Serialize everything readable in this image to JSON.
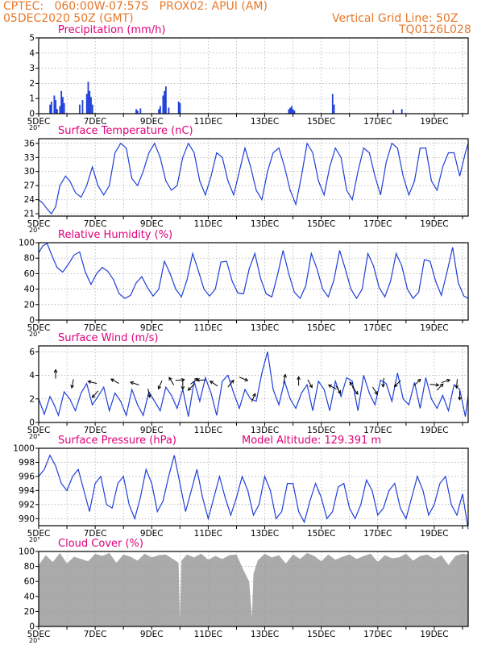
{
  "header": {
    "line1": "CPTEC:   060:00W-07:57S   PROX02: APUI (AM)",
    "line2": "05DEC2020 50Z (GMT)",
    "grid_note": "Vertical Grid Line: 50Z",
    "run_code": "TQ0126L028"
  },
  "colors": {
    "header": "#e8782a",
    "panel_title": "#e0007a",
    "series": "#1f3fd8",
    "wind_arrow": "#000000",
    "cloud_fill": "#aaaaaa",
    "grid": "#999999"
  },
  "x_axis": {
    "tick_labels": [
      "5DEC",
      "7DEC",
      "9DEC",
      "11DEC",
      "13DEC",
      "15DEC",
      "17DEC",
      "19DEC"
    ],
    "cut_label": "20°",
    "days_span": [
      0,
      15.2
    ]
  },
  "chart_data": [
    {
      "id": "precip",
      "type": "bar",
      "title": "Precipitation (mm/h)",
      "ylim": [
        0,
        5
      ],
      "yticks": [
        "0",
        "1",
        "2",
        "3",
        "4",
        "5"
      ],
      "grid": true,
      "bars": [
        [
          0.4,
          0.6
        ],
        [
          0.45,
          0.8
        ],
        [
          0.55,
          1.2
        ],
        [
          0.6,
          0.9
        ],
        [
          0.65,
          0.3
        ],
        [
          0.75,
          0.5
        ],
        [
          0.8,
          1.5
        ],
        [
          0.85,
          1.1
        ],
        [
          0.9,
          0.7
        ],
        [
          1.45,
          0.6
        ],
        [
          1.55,
          0.9
        ],
        [
          1.7,
          1.3
        ],
        [
          1.75,
          2.1
        ],
        [
          1.8,
          1.5
        ],
        [
          1.85,
          1.1
        ],
        [
          1.9,
          0.6
        ],
        [
          3.45,
          0.3
        ],
        [
          3.5,
          0.2
        ],
        [
          3.6,
          0.35
        ],
        [
          4.25,
          0.3
        ],
        [
          4.3,
          0.5
        ],
        [
          4.4,
          1.2
        ],
        [
          4.45,
          1.5
        ],
        [
          4.5,
          1.8
        ],
        [
          4.6,
          0.4
        ],
        [
          4.95,
          0.8
        ],
        [
          5.0,
          0.7
        ],
        [
          8.85,
          0.3
        ],
        [
          8.9,
          0.4
        ],
        [
          8.95,
          0.5
        ],
        [
          9.0,
          0.3
        ],
        [
          9.05,
          0.2
        ],
        [
          10.4,
          1.3
        ],
        [
          10.45,
          0.6
        ],
        [
          12.55,
          0.25
        ],
        [
          12.85,
          0.3
        ]
      ]
    },
    {
      "id": "temp",
      "type": "line",
      "title": "Surface Temperature (nC)",
      "ylim": [
        20.5,
        37
      ],
      "yticks": [
        "21",
        "24",
        "27",
        "30",
        "33",
        "36"
      ],
      "ytick_values": [
        21,
        24,
        27,
        30,
        33,
        36
      ],
      "grid": true,
      "x": [
        0,
        0.15,
        0.3,
        0.45,
        0.6,
        0.75,
        0.95,
        1.1,
        1.3,
        1.5,
        1.7,
        1.9,
        2.1,
        2.3,
        2.5,
        2.7,
        2.9,
        3.1,
        3.3,
        3.5,
        3.7,
        3.9,
        4.1,
        4.3,
        4.5,
        4.7,
        4.9,
        5.1,
        5.3,
        5.5,
        5.7,
        5.9,
        6.1,
        6.3,
        6.5,
        6.7,
        6.9,
        7.1,
        7.3,
        7.5,
        7.7,
        7.9,
        8.1,
        8.3,
        8.5,
        8.7,
        8.9,
        9.1,
        9.3,
        9.5,
        9.7,
        9.9,
        10.1,
        10.3,
        10.5,
        10.7,
        10.9,
        11.1,
        11.3,
        11.5,
        11.7,
        11.9,
        12.1,
        12.3,
        12.5,
        12.7,
        12.9,
        13.1,
        13.3,
        13.5,
        13.7,
        13.9,
        14.1,
        14.3,
        14.5,
        14.7,
        14.9,
        15.1,
        15.2
      ],
      "y": [
        24,
        23.2,
        22,
        21,
        22.5,
        27,
        29,
        28,
        25.5,
        24.5,
        27,
        31,
        27,
        25,
        27,
        34,
        36,
        35,
        28.5,
        27,
        30,
        34,
        36,
        33,
        28,
        26,
        27,
        33,
        36,
        34,
        28,
        25,
        29,
        34,
        33,
        28,
        25,
        30,
        35,
        31,
        26,
        24,
        30,
        34,
        35,
        31,
        26,
        23,
        29,
        36,
        34,
        28,
        25,
        31,
        35,
        33,
        26,
        24,
        30,
        35,
        34,
        29,
        25,
        32,
        36,
        35,
        29,
        25,
        28,
        35,
        35,
        28,
        26,
        31,
        34,
        34,
        29,
        34,
        36
      ]
    },
    {
      "id": "rh",
      "type": "line",
      "title": "Relative Humidity (%)",
      "ylim": [
        0,
        100
      ],
      "yticks": [
        "0",
        "20",
        "40",
        "60",
        "80",
        "100"
      ],
      "ytick_values": [
        0,
        20,
        40,
        60,
        80,
        100
      ],
      "grid": true,
      "x": [
        0,
        0.15,
        0.3,
        0.45,
        0.65,
        0.85,
        1.05,
        1.25,
        1.45,
        1.65,
        1.85,
        2.05,
        2.25,
        2.45,
        2.65,
        2.85,
        3.05,
        3.25,
        3.45,
        3.65,
        3.85,
        4.05,
        4.25,
        4.45,
        4.65,
        4.85,
        5.05,
        5.25,
        5.45,
        5.65,
        5.85,
        6.05,
        6.25,
        6.45,
        6.65,
        6.85,
        7.05,
        7.25,
        7.45,
        7.65,
        7.85,
        8.05,
        8.25,
        8.45,
        8.65,
        8.85,
        9.05,
        9.25,
        9.45,
        9.65,
        9.85,
        10.05,
        10.25,
        10.45,
        10.65,
        10.85,
        11.05,
        11.25,
        11.45,
        11.65,
        11.85,
        12.05,
        12.25,
        12.45,
        12.65,
        12.85,
        13.05,
        13.25,
        13.45,
        13.65,
        13.85,
        14.05,
        14.25,
        14.45,
        14.65,
        14.85,
        15.05,
        15.2
      ],
      "y": [
        87,
        96,
        99,
        85,
        68,
        62,
        72,
        84,
        88,
        62,
        46,
        60,
        68,
        63,
        52,
        34,
        28,
        32,
        48,
        56,
        42,
        31,
        40,
        76,
        60,
        40,
        30,
        52,
        86,
        64,
        40,
        31,
        40,
        75,
        76,
        50,
        35,
        34,
        66,
        86,
        54,
        34,
        30,
        58,
        90,
        60,
        36,
        28,
        44,
        86,
        66,
        40,
        30,
        52,
        90,
        66,
        40,
        28,
        40,
        86,
        70,
        42,
        30,
        50,
        86,
        70,
        40,
        28,
        36,
        78,
        76,
        50,
        32,
        62,
        94,
        48,
        31,
        28
      ]
    },
    {
      "id": "wind",
      "type": "line",
      "title": "Surface Wind (m/s)",
      "ylim": [
        0,
        6.5
      ],
      "yticks": [
        "0",
        "2",
        "4",
        "6"
      ],
      "ytick_values": [
        0,
        2,
        4,
        6
      ],
      "grid": true,
      "x": [
        0,
        0.2,
        0.4,
        0.55,
        0.7,
        0.9,
        1.1,
        1.3,
        1.5,
        1.7,
        1.9,
        2.1,
        2.3,
        2.5,
        2.7,
        2.9,
        3.1,
        3.3,
        3.5,
        3.7,
        3.9,
        4.1,
        4.3,
        4.5,
        4.7,
        4.9,
        5.1,
        5.3,
        5.5,
        5.7,
        5.9,
        6.1,
        6.3,
        6.5,
        6.7,
        6.9,
        7.1,
        7.3,
        7.5,
        7.7,
        7.9,
        8.1,
        8.3,
        8.5,
        8.7,
        8.9,
        9.1,
        9.3,
        9.5,
        9.7,
        9.9,
        10.1,
        10.3,
        10.5,
        10.7,
        10.9,
        11.1,
        11.3,
        11.5,
        11.7,
        11.9,
        12.1,
        12.3,
        12.5,
        12.7,
        12.9,
        13.1,
        13.3,
        13.5,
        13.7,
        13.9,
        14.1,
        14.3,
        14.5,
        14.7,
        14.9,
        15.1,
        15.2
      ],
      "y": [
        2.0,
        0.7,
        2.2,
        1.5,
        0.6,
        2.6,
        2.0,
        1.0,
        2.5,
        3.3,
        1.5,
        2.2,
        3.0,
        1.0,
        2.5,
        1.8,
        0.6,
        2.8,
        1.5,
        0.6,
        2.6,
        1.8,
        1.0,
        3.0,
        2.3,
        1.2,
        2.8,
        0.5,
        3.5,
        1.8,
        3.8,
        2.5,
        0.6,
        3.5,
        4.0,
        2.5,
        1.2,
        2.8,
        2.0,
        1.8,
        4.2,
        6.0,
        2.8,
        1.5,
        3.5,
        2.0,
        1.2,
        2.5,
        3.2,
        1.0,
        3.5,
        2.8,
        1.0,
        3.5,
        2.2,
        3.8,
        3.5,
        1.0,
        4.0,
        2.5,
        1.5,
        3.6,
        3.3,
        1.8,
        4.2,
        2.0,
        1.5,
        3.4,
        1.2,
        3.8,
        2.0,
        1.2,
        2.3,
        1.0,
        3.2,
        2.8,
        0.5,
        2.3
      ]
    },
    {
      "id": "pressure",
      "type": "line",
      "title": "Surface Pressure (hPa)",
      "annotation": "Model Altitude: 129.391  m",
      "ylim": [
        989,
        1000
      ],
      "yticks": [
        "990",
        "992",
        "994",
        "996",
        "998",
        "1000"
      ],
      "ytick_values": [
        990,
        992,
        994,
        996,
        998,
        1000
      ],
      "grid": true,
      "x": [
        0,
        0.2,
        0.4,
        0.6,
        0.8,
        1.0,
        1.2,
        1.4,
        1.6,
        1.8,
        2.0,
        2.2,
        2.4,
        2.6,
        2.8,
        3.0,
        3.2,
        3.4,
        3.6,
        3.8,
        4.0,
        4.2,
        4.4,
        4.6,
        4.8,
        5.0,
        5.2,
        5.4,
        5.6,
        5.8,
        6.0,
        6.2,
        6.4,
        6.6,
        6.8,
        7.0,
        7.2,
        7.4,
        7.6,
        7.8,
        8.0,
        8.2,
        8.4,
        8.6,
        8.8,
        9.0,
        9.2,
        9.4,
        9.6,
        9.8,
        10.0,
        10.2,
        10.4,
        10.6,
        10.8,
        11.0,
        11.2,
        11.4,
        11.6,
        11.8,
        12.0,
        12.2,
        12.4,
        12.6,
        12.8,
        13.0,
        13.2,
        13.4,
        13.6,
        13.8,
        14.0,
        14.2,
        14.4,
        14.6,
        14.8,
        15.0,
        15.2
      ],
      "y": [
        996,
        997,
        999,
        997.5,
        995,
        994,
        996,
        997,
        994,
        991,
        995,
        996,
        992,
        991.5,
        995,
        996,
        992,
        990,
        993,
        997,
        995,
        991,
        992.5,
        996,
        999,
        995,
        991,
        994,
        997,
        993,
        990,
        993,
        996,
        993,
        990.5,
        993,
        996,
        994,
        990.5,
        992,
        996,
        994,
        990,
        991,
        995,
        995,
        991,
        989.5,
        992.5,
        995,
        993,
        990,
        991,
        994.5,
        995,
        991.5,
        990,
        992,
        995.5,
        994,
        990.5,
        991.5,
        994,
        995,
        991.5,
        990,
        993,
        996,
        994,
        990.5,
        992,
        995,
        996,
        992,
        990.5,
        993.5,
        988.5
      ]
    },
    {
      "id": "cloud",
      "type": "area",
      "title": "Cloud Cover (%)",
      "ylim": [
        0,
        100
      ],
      "yticks": [
        "0",
        "20",
        "40",
        "60",
        "80",
        "100"
      ],
      "ytick_values": [
        0,
        20,
        40,
        60,
        80,
        100
      ],
      "grid": true,
      "x": [
        0,
        0.25,
        0.5,
        0.75,
        1.0,
        1.25,
        1.5,
        1.75,
        2.0,
        2.25,
        2.5,
        2.75,
        3.0,
        3.25,
        3.5,
        3.75,
        4.0,
        4.25,
        4.5,
        4.75,
        4.95,
        5.0,
        5.05,
        5.25,
        5.5,
        5.75,
        6.0,
        6.25,
        6.5,
        6.75,
        7.0,
        7.25,
        7.45,
        7.55,
        7.6,
        7.75,
        8.0,
        8.25,
        8.5,
        8.75,
        9.0,
        9.25,
        9.5,
        9.75,
        10.0,
        10.25,
        10.5,
        10.75,
        11.0,
        11.25,
        11.5,
        11.75,
        12.0,
        12.25,
        12.5,
        12.75,
        13.0,
        13.25,
        13.5,
        13.75,
        14.0,
        14.25,
        14.5,
        14.75,
        15.0,
        15.2
      ],
      "y": [
        82,
        95,
        86,
        98,
        84,
        93,
        90,
        87,
        97,
        94,
        98,
        85,
        96,
        93,
        88,
        97,
        92,
        95,
        96,
        90,
        85,
        5,
        88,
        96,
        92,
        97,
        89,
        94,
        90,
        95,
        96,
        75,
        60,
        12,
        70,
        88,
        97,
        92,
        95,
        84,
        96,
        90,
        98,
        94,
        87,
        96,
        89,
        93,
        96,
        90,
        94,
        97,
        86,
        95,
        91,
        92,
        97,
        88,
        94,
        96,
        90,
        95,
        82,
        94,
        97,
        96
      ]
    }
  ],
  "wind_arrows": [
    {
      "x": 0.6,
      "y": 4.1,
      "u": 0.0,
      "v": 1.0
    },
    {
      "x": 1.2,
      "y": 3.3,
      "u": -0.2,
      "v": -1.0
    },
    {
      "x": 1.9,
      "y": 3.4,
      "u": -0.8,
      "v": 0.2
    },
    {
      "x": 2.0,
      "y": 2.4,
      "u": -0.7,
      "v": -0.8
    },
    {
      "x": 2.7,
      "y": 3.5,
      "u": -0.9,
      "v": 0.5
    },
    {
      "x": 3.4,
      "y": 3.3,
      "u": -0.6,
      "v": 0.2
    },
    {
      "x": 3.9,
      "y": 2.5,
      "u": 0.2,
      "v": -0.9
    },
    {
      "x": 4.3,
      "y": 3.2,
      "u": -0.4,
      "v": -0.9
    },
    {
      "x": 4.7,
      "y": 3.5,
      "u": -0.3,
      "v": 0.5
    },
    {
      "x": 5.0,
      "y": 3.6,
      "u": 1.0,
      "v": 0.1
    },
    {
      "x": 5.1,
      "y": 3.2,
      "u": 0.0,
      "v": -1.0
    },
    {
      "x": 5.4,
      "y": 3.0,
      "u": -0.8,
      "v": -0.8
    },
    {
      "x": 5.5,
      "y": 3.5,
      "u": 0.6,
      "v": 0.5
    },
    {
      "x": 5.75,
      "y": 3.6,
      "u": -1.0,
      "v": 0.0
    },
    {
      "x": 6.2,
      "y": 3.3,
      "u": -0.6,
      "v": 0.4
    },
    {
      "x": 6.8,
      "y": 3.3,
      "u": 0.5,
      "v": 0.6
    },
    {
      "x": 7.25,
      "y": 3.7,
      "u": 0.5,
      "v": -0.2
    },
    {
      "x": 7.6,
      "y": 2.1,
      "u": 0.5,
      "v": 1.2
    },
    {
      "x": 8.7,
      "y": 3.7,
      "u": 0.2,
      "v": 1.0
    },
    {
      "x": 9.2,
      "y": 3.5,
      "u": 0.0,
      "v": 1.0
    },
    {
      "x": 9.6,
      "y": 3.3,
      "u": 0.5,
      "v": -0.9
    },
    {
      "x": 10.4,
      "y": 3.0,
      "u": -0.9,
      "v": 0.5
    },
    {
      "x": 10.6,
      "y": 2.8,
      "u": 0.5,
      "v": -0.8
    },
    {
      "x": 11.1,
      "y": 3.1,
      "u": -0.5,
      "v": 0.8
    },
    {
      "x": 11.2,
      "y": 2.7,
      "u": 0.6,
      "v": -0.8
    },
    {
      "x": 11.9,
      "y": 2.7,
      "u": 0.5,
      "v": -0.8
    },
    {
      "x": 12.2,
      "y": 3.4,
      "u": -0.1,
      "v": -1.0
    },
    {
      "x": 12.7,
      "y": 3.3,
      "u": -0.5,
      "v": -0.5
    },
    {
      "x": 13.4,
      "y": 3.4,
      "u": 0.5,
      "v": 0.5
    },
    {
      "x": 14.0,
      "y": 3.2,
      "u": 1.0,
      "v": -0.1
    },
    {
      "x": 14.2,
      "y": 3.0,
      "u": 0.5,
      "v": 0.5
    },
    {
      "x": 14.4,
      "y": 3.5,
      "u": 0.9,
      "v": 0.3
    },
    {
      "x": 14.8,
      "y": 3.3,
      "u": -0.1,
      "v": -1.0
    },
    {
      "x": 14.9,
      "y": 2.3,
      "u": 0.0,
      "v": -1.0
    }
  ]
}
